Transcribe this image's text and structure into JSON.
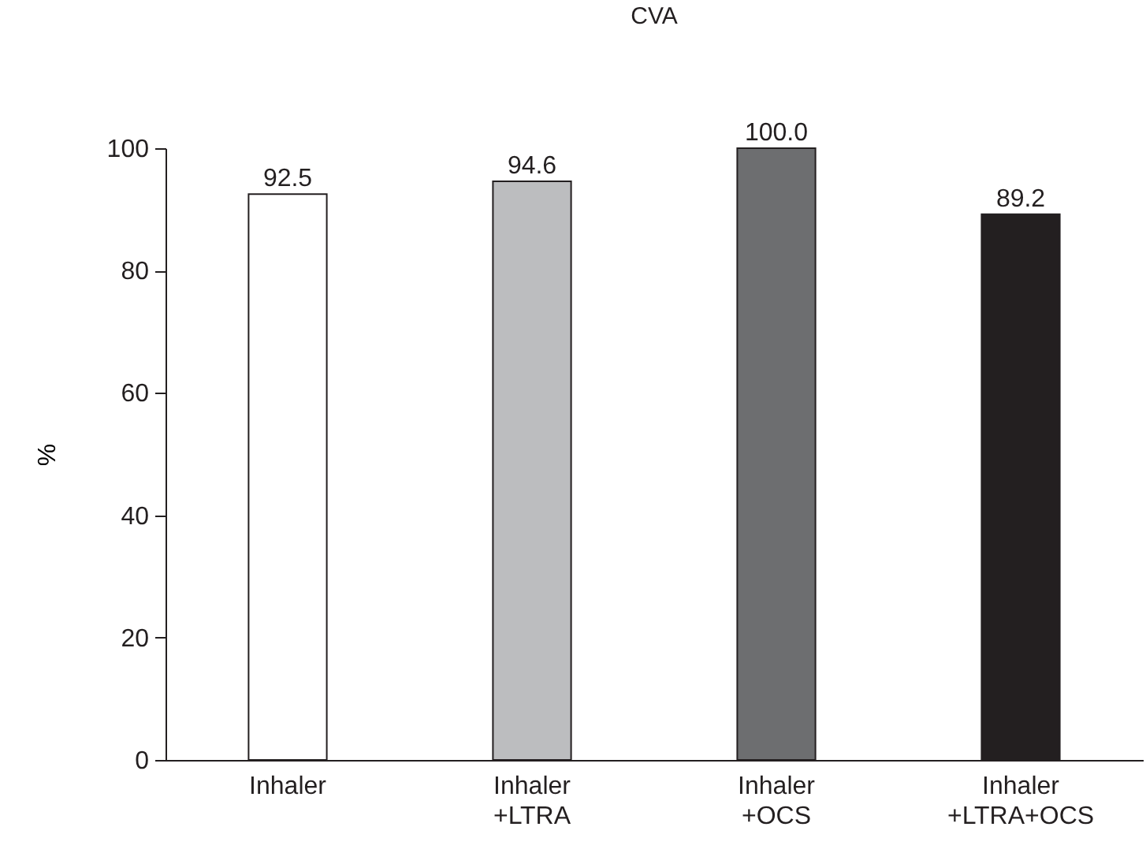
{
  "chart_data": {
    "type": "bar",
    "title": "CVA",
    "ylabel": "%",
    "categories": [
      "Inhaler",
      "Inhaler\n+LTRA",
      "Inhaler\n+OCS",
      "Inhaler\n+LTRA+OCS"
    ],
    "values": [
      92.5,
      94.6,
      100.0,
      89.2
    ],
    "colors": [
      "#ffffff",
      "#bcbdbf",
      "#6d6e70",
      "#231f20"
    ],
    "value_labels": [
      "92.5",
      "94.6",
      "100.0",
      "89.2"
    ],
    "ylim": [
      0,
      100
    ],
    "yticks": [
      0,
      20,
      40,
      60,
      80,
      100
    ],
    "grid": false
  }
}
